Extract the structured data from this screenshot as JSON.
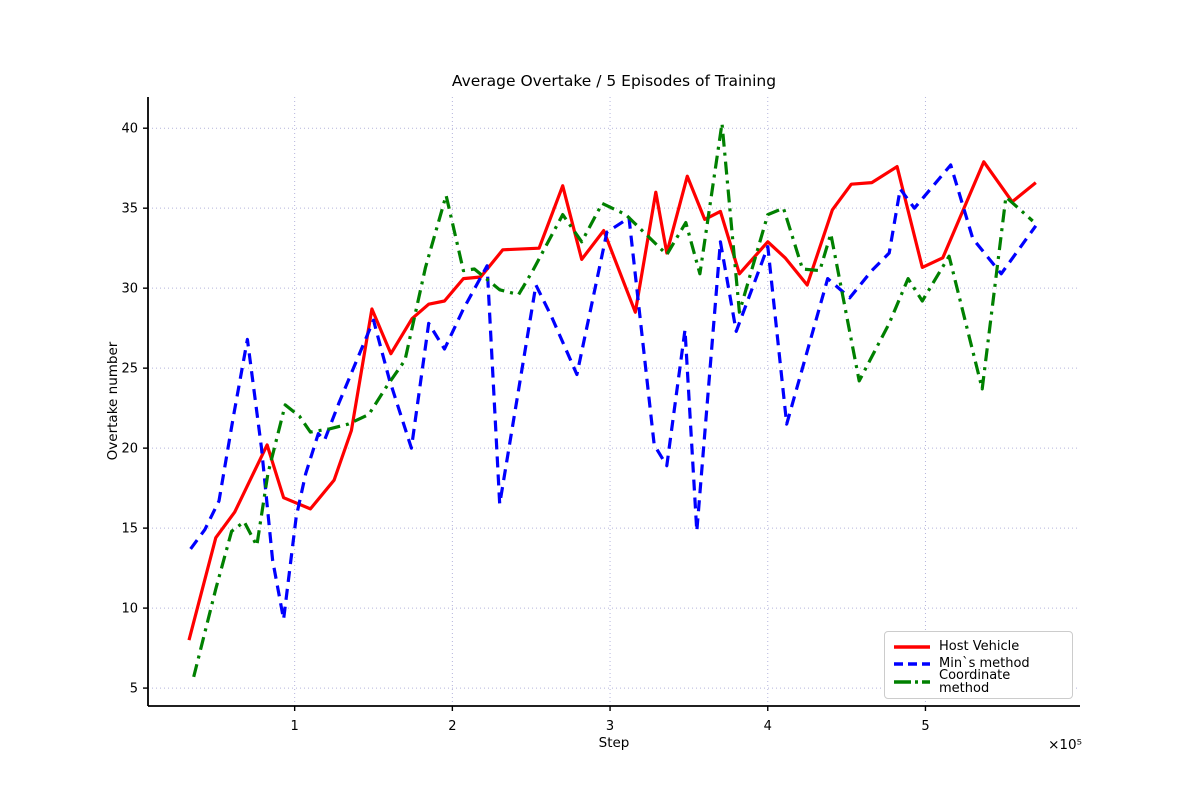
{
  "figure": {
    "title": "Average Overtake / 5 Episodes of Training",
    "xlabel": "Step",
    "ylabel": "Overtake number",
    "offset_text": "×10⁵"
  },
  "legend": {
    "position": "lower right",
    "items": [
      {
        "label": "Host Vehicle",
        "color": "#ff0000",
        "style": "solid"
      },
      {
        "label": "Min`s method",
        "color": "#0000ff",
        "style": "dashed"
      },
      {
        "label": "Coordinate method",
        "color": "#008000",
        "style": "dashdot"
      }
    ]
  },
  "chart_data": {
    "type": "line",
    "title": "Average Overtake / 5 Episodes of Training",
    "xlabel": "Step",
    "ylabel": "Overtake number",
    "x_unit_note": "x values are Step ×10⁵",
    "xlim": [
      0.07,
      5.98
    ],
    "ylim": [
      3.88,
      41.95
    ],
    "x_ticks": [
      1,
      2,
      3,
      4,
      5
    ],
    "y_ticks": [
      5,
      10,
      15,
      20,
      25,
      30,
      35,
      40
    ],
    "grid": true,
    "grid_style": "dotted",
    "legend_position": "lower right",
    "series": [
      {
        "name": "Host Vehicle",
        "color": "#ff0000",
        "style": "solid",
        "line_width": 3.2,
        "x": [
          0.33,
          0.5,
          0.62,
          0.825,
          0.93,
          1.1,
          1.25,
          1.36,
          1.49,
          1.61,
          1.745,
          1.85,
          1.95,
          2.07,
          2.18,
          2.32,
          2.55,
          2.7,
          2.82,
          2.96,
          3.16,
          3.29,
          3.36,
          3.49,
          3.6,
          3.7,
          3.82,
          4.0,
          4.11,
          4.25,
          4.41,
          4.53,
          4.66,
          4.82,
          4.98,
          5.11,
          5.37,
          5.55,
          5.7
        ],
        "y": [
          8.0,
          14.4,
          16.0,
          20.2,
          16.9,
          16.2,
          18.0,
          21.1,
          28.7,
          25.9,
          28.1,
          29.0,
          29.2,
          30.6,
          30.7,
          32.4,
          32.5,
          36.4,
          31.8,
          33.6,
          28.5,
          36.0,
          32.2,
          37.0,
          34.3,
          34.8,
          30.9,
          32.9,
          31.9,
          30.2,
          34.9,
          36.5,
          36.6,
          37.6,
          31.3,
          31.9,
          37.9,
          35.4,
          36.6
        ]
      },
      {
        "name": "Min`s method",
        "color": "#0000ff",
        "style": "dashed",
        "line_width": 3.2,
        "x": [
          0.34,
          0.43,
          0.52,
          0.61,
          0.7,
          0.79,
          0.86,
          0.93,
          1.01,
          1.07,
          1.15,
          1.19,
          1.28,
          1.5,
          1.6,
          1.74,
          1.85,
          1.95,
          2.07,
          2.22,
          2.3,
          2.53,
          2.63,
          2.79,
          2.98,
          3.12,
          3.28,
          3.36,
          3.475,
          3.55,
          3.7,
          3.8,
          4.0,
          4.12,
          4.38,
          4.52,
          4.66,
          4.77,
          4.84,
          4.93,
          5.16,
          5.3,
          5.48,
          5.7
        ],
        "y": [
          13.7,
          14.9,
          16.7,
          21.9,
          26.8,
          20.0,
          13.0,
          9.3,
          15.7,
          18.4,
          20.9,
          20.5,
          22.8,
          28.0,
          24.3,
          20.0,
          27.8,
          26.2,
          28.7,
          31.4,
          16.5,
          30.2,
          28.2,
          24.6,
          33.5,
          34.4,
          20.2,
          18.9,
          27.4,
          14.8,
          32.9,
          27.3,
          32.6,
          21.5,
          30.6,
          29.4,
          31.1,
          32.2,
          36.2,
          35.0,
          37.7,
          33.1,
          30.9,
          33.9
        ]
      },
      {
        "name": "Coordinate method",
        "color": "#008000",
        "style": "dashdot",
        "line_width": 3.2,
        "x": [
          0.36,
          0.5,
          0.6,
          0.68,
          0.76,
          0.83,
          0.94,
          1.03,
          1.1,
          1.22,
          1.34,
          1.47,
          1.58,
          1.7,
          1.83,
          1.96,
          2.07,
          2.14,
          2.3,
          2.42,
          2.51,
          2.7,
          2.82,
          2.95,
          3.1,
          3.36,
          3.48,
          3.57,
          3.71,
          3.82,
          4.0,
          4.1,
          4.22,
          4.33,
          4.4,
          4.58,
          4.77,
          4.89,
          4.98,
          5.15,
          5.36,
          5.51,
          5.68
        ],
        "y": [
          5.7,
          11.2,
          14.8,
          15.4,
          13.9,
          18.4,
          22.7,
          22.0,
          21.0,
          21.2,
          21.5,
          22.1,
          23.8,
          25.5,
          31.3,
          35.8,
          31.1,
          31.2,
          29.9,
          29.6,
          31.1,
          34.6,
          32.9,
          35.3,
          34.6,
          32.1,
          34.1,
          30.9,
          40.3,
          28.5,
          34.6,
          35.0,
          31.2,
          31.1,
          33.4,
          24.2,
          27.8,
          30.6,
          29.2,
          32.0,
          23.7,
          35.7,
          34.2
        ]
      }
    ],
    "style_hints": {
      "grid_color": "#b4b4dc",
      "spine_color": "#000000",
      "background": "#ffffff"
    }
  }
}
